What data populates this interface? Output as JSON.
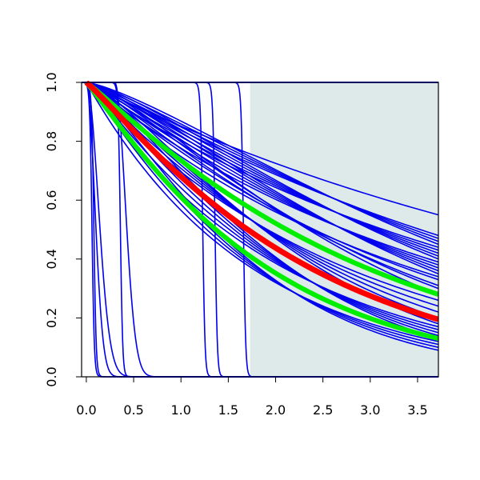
{
  "chart_data": {
    "type": "line",
    "title": "",
    "xlabel": "",
    "ylabel": "",
    "xlim": [
      -0.05,
      3.72
    ],
    "ylim": [
      0.0,
      1.0
    ],
    "x_ticks": [
      0.0,
      0.5,
      1.0,
      1.5,
      2.0,
      2.5,
      3.0,
      3.5
    ],
    "x_tick_labels": [
      "0.0",
      "0.5",
      "1.0",
      "1.5",
      "2.0",
      "2.5",
      "3.0",
      "3.5"
    ],
    "y_ticks": [
      0.0,
      0.2,
      0.4,
      0.6,
      0.8,
      1.0
    ],
    "y_tick_labels": [
      "0.0",
      "0.2",
      "0.4",
      "0.6",
      "0.8",
      "1.0"
    ],
    "shaded_region": {
      "x_start": 1.73,
      "x_end": 3.72,
      "color": "#deeaea"
    },
    "colors": {
      "samples": "#0000ee",
      "median": "#ff0000",
      "bounds": "#00ee00",
      "axis": "#000000"
    },
    "grid": false,
    "legend": "none",
    "decay_series": {
      "color": "blue",
      "values_at_x_max": [
        0.55,
        0.48,
        0.47,
        0.46,
        0.45,
        0.44,
        0.43,
        0.42,
        0.41,
        0.4,
        0.39,
        0.38,
        0.37,
        0.36,
        0.35,
        0.34,
        0.33,
        0.31,
        0.3,
        0.28,
        0.26,
        0.24,
        0.22,
        0.2,
        0.18,
        0.17,
        0.16,
        0.15,
        0.14,
        0.13,
        0.12,
        0.11,
        0.1,
        0.09
      ]
    },
    "drop_series": {
      "color": "blue",
      "drop_points": [
        {
          "x_drop": 0.0,
          "steep": true
        },
        {
          "x_drop": 0.02,
          "steep": true
        },
        {
          "x_drop": 0.3,
          "steep": true
        },
        {
          "x_drop": 1.17,
          "steep": true
        },
        {
          "x_drop": 1.3,
          "steep": true
        },
        {
          "x_drop": 1.6,
          "steep": true
        },
        {
          "x_drop": 0.0,
          "steep": false,
          "rate": 11
        },
        {
          "x_drop": 0.0,
          "steep": false,
          "rate": 5.5
        },
        {
          "x_drop": 0.3,
          "steep": false,
          "rate": 7
        }
      ]
    },
    "flat_series": {
      "color": "blue",
      "value": 1.0
    },
    "bound_series": {
      "color": "green",
      "values_at_x_max": [
        0.28,
        0.13
      ]
    },
    "median_series": {
      "color": "red",
      "values_at_x_max": [
        0.195
      ]
    }
  }
}
